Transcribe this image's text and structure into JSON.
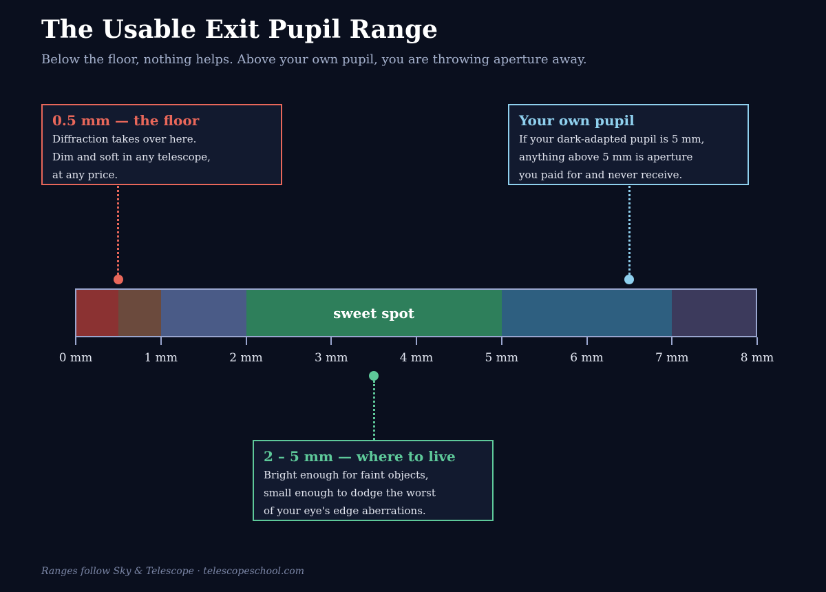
{
  "header": {
    "title": "The Usable Exit Pupil Range",
    "subtitle": "Below the floor, nothing helps. Above your own pupil, you are throwing aperture away."
  },
  "scale": {
    "min": 0,
    "max": 8,
    "unit": "mm",
    "ticks": [
      "0 mm",
      "1 mm",
      "2 mm",
      "3 mm",
      "4 mm",
      "5 mm",
      "6 mm",
      "7 mm",
      "8 mm"
    ]
  },
  "segments": [
    {
      "from": 0,
      "to": 0.5,
      "color": "#8b3232",
      "label": ""
    },
    {
      "from": 0.5,
      "to": 1,
      "color": "#6b4a3d",
      "label": ""
    },
    {
      "from": 1,
      "to": 2,
      "color": "#4a5b87",
      "label": ""
    },
    {
      "from": 2,
      "to": 5,
      "color": "#2e7f5b",
      "label": "sweet spot"
    },
    {
      "from": 5,
      "to": 7,
      "color": "#2e5f80",
      "label": ""
    },
    {
      "from": 7,
      "to": 8,
      "color": "#3c3a5c",
      "label": ""
    }
  ],
  "callouts": {
    "floor": {
      "value": 0.5,
      "color": "#e8675a",
      "title": "0.5 mm — the floor",
      "lines": [
        "Diffraction takes over here.",
        "Dim and soft in any telescope,",
        "at any price."
      ]
    },
    "pupil": {
      "value": 6.5,
      "color": "#8fd0ee",
      "title": "Your own pupil",
      "lines": [
        "If your dark-adapted pupil is 5 mm,",
        "anything above 5 mm is aperture",
        "you paid for and never receive."
      ]
    },
    "sweet": {
      "value": 3.5,
      "color": "#5ec99a",
      "title": "2 – 5 mm — where to live",
      "lines": [
        "Bright enough for faint objects,",
        "small enough to dodge the worst",
        "of your eye's edge aberrations."
      ]
    }
  },
  "footer": "Ranges follow Sky & Telescope  ·  telescopeschool.com"
}
